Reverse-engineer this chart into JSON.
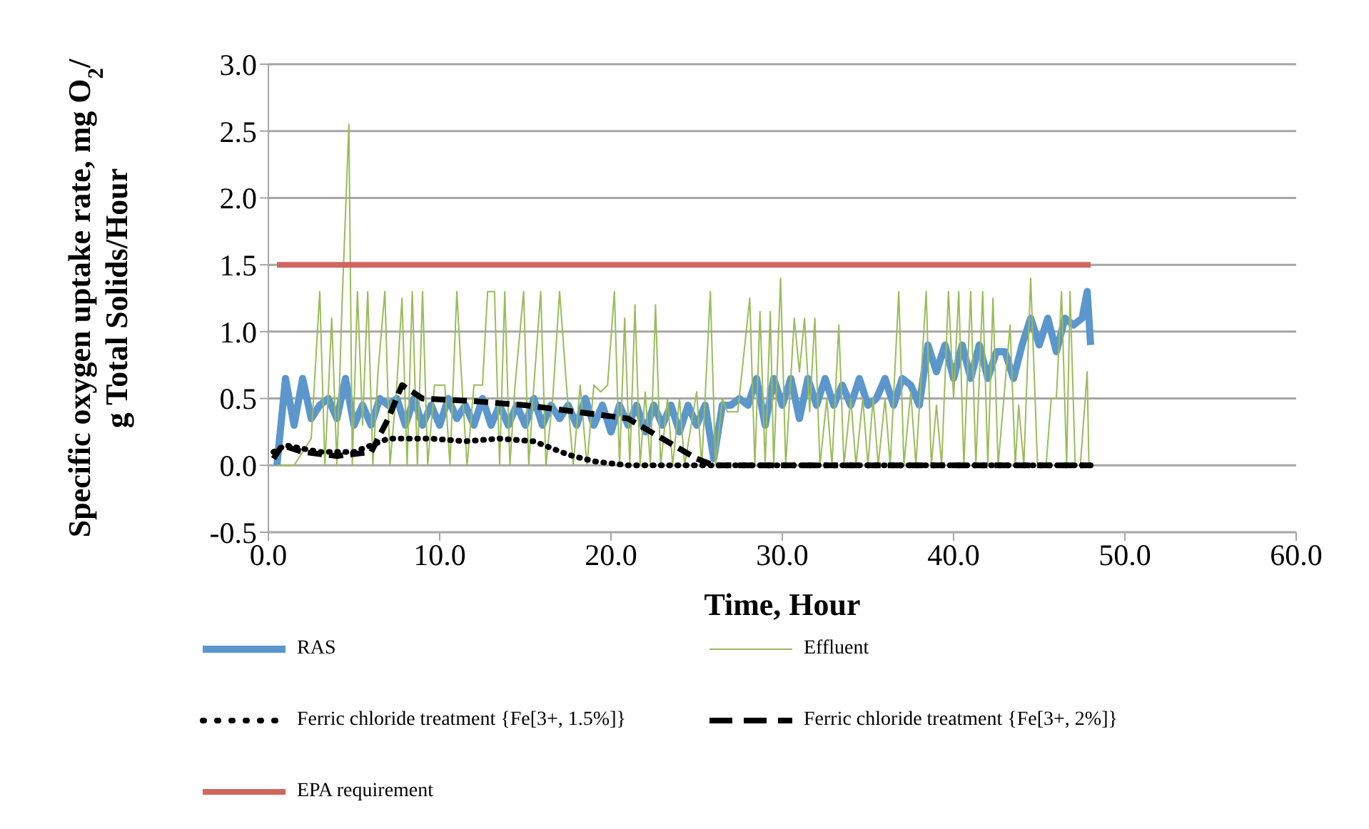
{
  "chart_data": {
    "type": "line",
    "xlabel": "Time, Hour",
    "ylabel": "Specific oxygen uptake rate, mg O$_{2}$/ g Total Solids/Hour",
    "xlim": [
      0,
      60
    ],
    "xticks": [
      {
        "value": 0,
        "label": "0.0"
      },
      {
        "value": 10,
        "label": "10.0"
      },
      {
        "value": 20,
        "label": "20.0"
      },
      {
        "value": 30,
        "label": "30.0"
      },
      {
        "value": 40,
        "label": "40.0"
      },
      {
        "value": 50,
        "label": "50.0"
      },
      {
        "value": 60,
        "label": "60.0"
      }
    ],
    "ylim": [
      -0.5,
      3
    ],
    "yticks": [
      {
        "value": -0.5,
        "label": "-0.5"
      },
      {
        "value": 0,
        "label": "0.0"
      },
      {
        "value": 0.5,
        "label": "0.5"
      },
      {
        "value": 1,
        "label": "1.0"
      },
      {
        "value": 1.5,
        "label": "1.5"
      },
      {
        "value": 2,
        "label": "2.0"
      },
      {
        "value": 2.5,
        "label": "2.5"
      },
      {
        "value": 3,
        "label": "3.0"
      }
    ],
    "grid": "y",
    "legend": "bottom",
    "marker": "none",
    "series": [
      {
        "name": "RAS",
        "color": "#5b96cc",
        "line_style": "solid",
        "x": [
          0.5,
          1,
          1.5,
          2,
          2.5,
          3,
          3.5,
          4,
          4.5,
          5,
          5.5,
          6,
          6.5,
          7,
          7.5,
          8,
          8.5,
          9,
          9.5,
          10,
          10.5,
          11,
          11.5,
          12,
          12.5,
          13,
          13.5,
          14,
          14.5,
          15,
          15.5,
          16,
          16.5,
          17,
          17.5,
          18,
          18.5,
          19,
          19.5,
          20,
          20.5,
          21,
          21.5,
          22,
          22.5,
          23,
          23.5,
          24,
          24.5,
          25,
          25.5,
          26,
          26.5,
          27,
          27.5,
          28,
          28.5,
          29,
          29.5,
          30,
          30.5,
          31,
          31.5,
          32,
          32.5,
          33,
          33.5,
          34,
          34.5,
          35,
          35.5,
          36,
          36.5,
          37,
          37.5,
          38,
          38.5,
          39,
          39.5,
          40,
          40.5,
          41,
          41.5,
          42,
          42.5,
          43,
          43.5,
          44,
          44.5,
          45,
          45.5,
          46,
          46.5,
          47,
          47.5,
          47.8,
          48
        ],
        "values": [
          0,
          0.65,
          0.3,
          0.65,
          0.35,
          0.45,
          0.5,
          0.35,
          0.65,
          0.3,
          0.45,
          0.3,
          0.5,
          0.45,
          0.5,
          0.3,
          0.5,
          0.3,
          0.45,
          0.3,
          0.5,
          0.35,
          0.45,
          0.3,
          0.5,
          0.3,
          0.45,
          0.3,
          0.45,
          0.3,
          0.5,
          0.3,
          0.45,
          0.35,
          0.45,
          0.3,
          0.5,
          0.3,
          0.45,
          0.25,
          0.45,
          0.3,
          0.45,
          0.25,
          0.45,
          0.3,
          0.45,
          0.25,
          0.45,
          0.3,
          0.45,
          0.05,
          0.45,
          0.45,
          0.5,
          0.45,
          0.65,
          0.3,
          0.65,
          0.45,
          0.65,
          0.35,
          0.65,
          0.45,
          0.65,
          0.45,
          0.6,
          0.45,
          0.65,
          0.45,
          0.5,
          0.65,
          0.45,
          0.65,
          0.6,
          0.45,
          0.9,
          0.7,
          0.9,
          0.65,
          0.9,
          0.65,
          0.9,
          0.65,
          0.85,
          0.85,
          0.65,
          0.9,
          1.1,
          0.9,
          1.1,
          0.85,
          1.1,
          1.05,
          1.1,
          1.3,
          0.9
        ]
      },
      {
        "name": "Effluent",
        "color": "#9bbb59",
        "line_style": "solid",
        "x": [
          0.5,
          1.5,
          2.5,
          3,
          3.3,
          3.7,
          4,
          4.3,
          4.7,
          4.9,
          5.2,
          5.5,
          5.8,
          6.1,
          6.4,
          6.8,
          7.1,
          7.5,
          7.8,
          8.1,
          8.4,
          8.7,
          9,
          9.3,
          9.7,
          10.3,
          10.6,
          11,
          11.3,
          11.6,
          12,
          12.5,
          12.8,
          13.2,
          13.5,
          13.8,
          14.1,
          14.4,
          14.9,
          15.2,
          15.5,
          15.9,
          16.2,
          16.6,
          17,
          17.4,
          17.8,
          18.2,
          18.6,
          19,
          19.4,
          19.8,
          20.2,
          20.5,
          20.8,
          21.1,
          21.4,
          21.7,
          22,
          22.3,
          22.6,
          22.9,
          23.3,
          23.6,
          24,
          24.3,
          25,
          25.3,
          25.8,
          26.1,
          26.5,
          26.8,
          27.4,
          28.1,
          28.4,
          28.7,
          29,
          29.3,
          29.5,
          29.9,
          30.2,
          30.7,
          31,
          31.3,
          31.6,
          31.9,
          32.2,
          32.6,
          32.9,
          33.3,
          33.6,
          34,
          34.3,
          34.7,
          35,
          35.3,
          35.6,
          36,
          36.3,
          36.8,
          37.1,
          37.5,
          37.8,
          38.4,
          38.7,
          39,
          39.3,
          39.7,
          40,
          40.3,
          40.6,
          41,
          41.3,
          41.7,
          42,
          42.3,
          42.6,
          43.3,
          43.6,
          43.8,
          44.1,
          44.5,
          44.9,
          45.4,
          45.7,
          46,
          46.3,
          46.6,
          46.8,
          47.1,
          47.4,
          47.8,
          47.9
        ],
        "values": [
          0,
          0,
          0.2,
          1.3,
          0,
          1.1,
          0,
          1.2,
          2.55,
          0,
          1.3,
          0.3,
          1.3,
          0,
          0.7,
          1.3,
          0,
          0.6,
          1.25,
          0,
          1.3,
          0,
          1.3,
          0,
          0.6,
          0.6,
          0,
          1.3,
          0.6,
          0,
          0.6,
          0.6,
          1.3,
          1.3,
          0,
          1.3,
          0,
          0.6,
          1.3,
          0,
          0.6,
          1.3,
          0,
          0.5,
          1.3,
          0.6,
          0,
          0.6,
          0,
          0.6,
          0.55,
          0.6,
          1.3,
          0,
          1.1,
          0,
          1.2,
          0,
          0.55,
          0,
          1.2,
          0,
          0.5,
          0,
          0.5,
          0,
          0.55,
          0,
          1.3,
          0,
          0.5,
          0.4,
          0.4,
          1.25,
          0,
          1.15,
          0,
          1.15,
          0,
          1.4,
          0,
          1.1,
          0.7,
          1.1,
          0.4,
          1.1,
          0,
          0.5,
          0,
          1.05,
          0,
          0.5,
          0,
          0.5,
          0,
          0.5,
          0,
          0.5,
          0,
          1.3,
          0,
          0.55,
          0,
          1.3,
          0,
          0.45,
          0,
          1.3,
          0.5,
          1.3,
          0,
          1.3,
          0,
          1.3,
          0,
          1.25,
          0,
          1.05,
          0,
          0.45,
          0,
          1.4,
          0,
          0,
          0.5,
          0.5,
          1.3,
          0,
          1.3,
          0,
          0,
          0.7,
          0
        ]
      },
      {
        "name": "Ferric chloride treatment {Fe[3+, 1.5%]}",
        "color": "#000000",
        "line_style": "dotted",
        "x": [
          0.3,
          1,
          3,
          5,
          7,
          9.5,
          11.5,
          13.5,
          15.5,
          17.5,
          19,
          21,
          30,
          40,
          48
        ],
        "values": [
          0.1,
          0.15,
          0.1,
          0.1,
          0.2,
          0.2,
          0.18,
          0.2,
          0.18,
          0.08,
          0.03,
          0,
          0,
          0,
          0
        ]
      },
      {
        "name": "Ferric chloride treatment {Fe[3+, 2%]}",
        "color": "#000000",
        "line_style": "dashed",
        "x": [
          0.3,
          0.8,
          2,
          4,
          6,
          7,
          7.8,
          9,
          12,
          15,
          18,
          21,
          23,
          25,
          26,
          35,
          48
        ],
        "values": [
          0.05,
          0.15,
          0.1,
          0.07,
          0.1,
          0.35,
          0.6,
          0.5,
          0.48,
          0.45,
          0.4,
          0.35,
          0.2,
          0.05,
          0,
          0,
          0
        ]
      },
      {
        "name": "EPA requirement",
        "color": "#d0655f",
        "line_style": "solid",
        "x": [
          0.5,
          48
        ],
        "values": [
          1.5,
          1.5
        ]
      }
    ]
  }
}
